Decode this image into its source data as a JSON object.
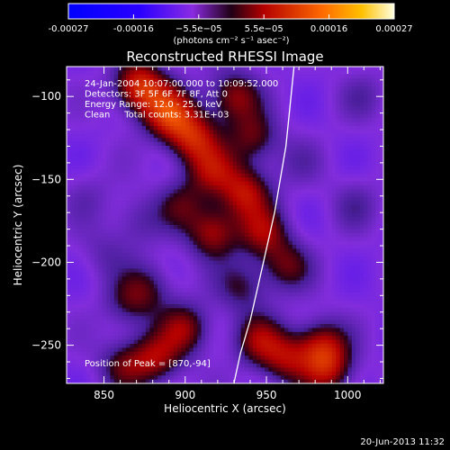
{
  "chart_data": {
    "type": "heatmap",
    "title": "Reconstructed RHESSI Image",
    "xlabel": "Heliocentric X (arcsec)",
    "ylabel": "Heliocentric Y (arcsec)",
    "xlim": [
      827,
      1022
    ],
    "ylim": [
      -273,
      -82
    ],
    "xticks": [
      850,
      900,
      950,
      1000
    ],
    "yticks": [
      -100,
      -150,
      -200,
      -250
    ],
    "colorbar": {
      "ticks": [
        "-0.00027",
        "-0.00016",
        "−5.5e−05",
        "5.5e−05",
        "0.00016",
        "0.00027"
      ],
      "range": [
        -0.00027,
        0.00027
      ],
      "unit_label": "(photons cm⁻² s⁻¹ asec⁻²)"
    },
    "annotations": [
      "24-Jan-2004 10:07:00.000 to 10:09:52.000",
      "Detectors: 3F 5F 6F 7F 8F, Att 0",
      "Energy Range: 12.0 - 25.0 keV",
      "Clean     Total counts: 3.31E+03"
    ],
    "peak_label": "Position of Peak = [870,-94]",
    "peak": [
      870,
      -94
    ],
    "sources": [
      {
        "x": 890,
        "y": -110,
        "value": 0.00026
      },
      {
        "x": 872,
        "y": -94,
        "value": 0.00027
      },
      {
        "x": 905,
        "y": -125,
        "value": 0.00022
      },
      {
        "x": 930,
        "y": -100,
        "value": 0.00017
      },
      {
        "x": 942,
        "y": -125,
        "value": 0.00014
      },
      {
        "x": 917,
        "y": -145,
        "value": 0.00016
      },
      {
        "x": 937,
        "y": -158,
        "value": 0.0002
      },
      {
        "x": 917,
        "y": -182,
        "value": 0.00019
      },
      {
        "x": 948,
        "y": -182,
        "value": 0.00016
      },
      {
        "x": 962,
        "y": -202,
        "value": 0.00013
      },
      {
        "x": 898,
        "y": -165,
        "value": 0.0001
      },
      {
        "x": 878,
        "y": -215,
        "value": 9e-05
      },
      {
        "x": 865,
        "y": -225,
        "value": 9e-05
      },
      {
        "x": 900,
        "y": -240,
        "value": 0.00016
      },
      {
        "x": 882,
        "y": -258,
        "value": 0.00017
      },
      {
        "x": 862,
        "y": -262,
        "value": 0.00012
      },
      {
        "x": 935,
        "y": -215,
        "value": 0.0001
      },
      {
        "x": 945,
        "y": -247,
        "value": 0.00015
      },
      {
        "x": 962,
        "y": -258,
        "value": 0.00016
      },
      {
        "x": 984,
        "y": -250,
        "value": 0.00018
      },
      {
        "x": 988,
        "y": -265,
        "value": 0.00017
      },
      {
        "x": 1005,
        "y": -165,
        "value": 5e-05
      },
      {
        "x": 870,
        "y": -175,
        "value": 6e-05
      },
      {
        "x": 850,
        "y": -195,
        "value": 4e-05
      },
      {
        "x": 1010,
        "y": -100,
        "value": 4e-05
      },
      {
        "x": 840,
        "y": -160,
        "value": 3e-05
      },
      {
        "x": 970,
        "y": -140,
        "value": 3e-05
      }
    ],
    "limb": [
      [
        967,
        -82
      ],
      [
        962,
        -130
      ],
      [
        955,
        -170
      ],
      [
        947,
        -205
      ],
      [
        940,
        -235
      ],
      [
        934,
        -255
      ],
      [
        930,
        -273
      ]
    ]
  },
  "footer": {
    "timestamp": "20-Jun-2013 11:32"
  }
}
